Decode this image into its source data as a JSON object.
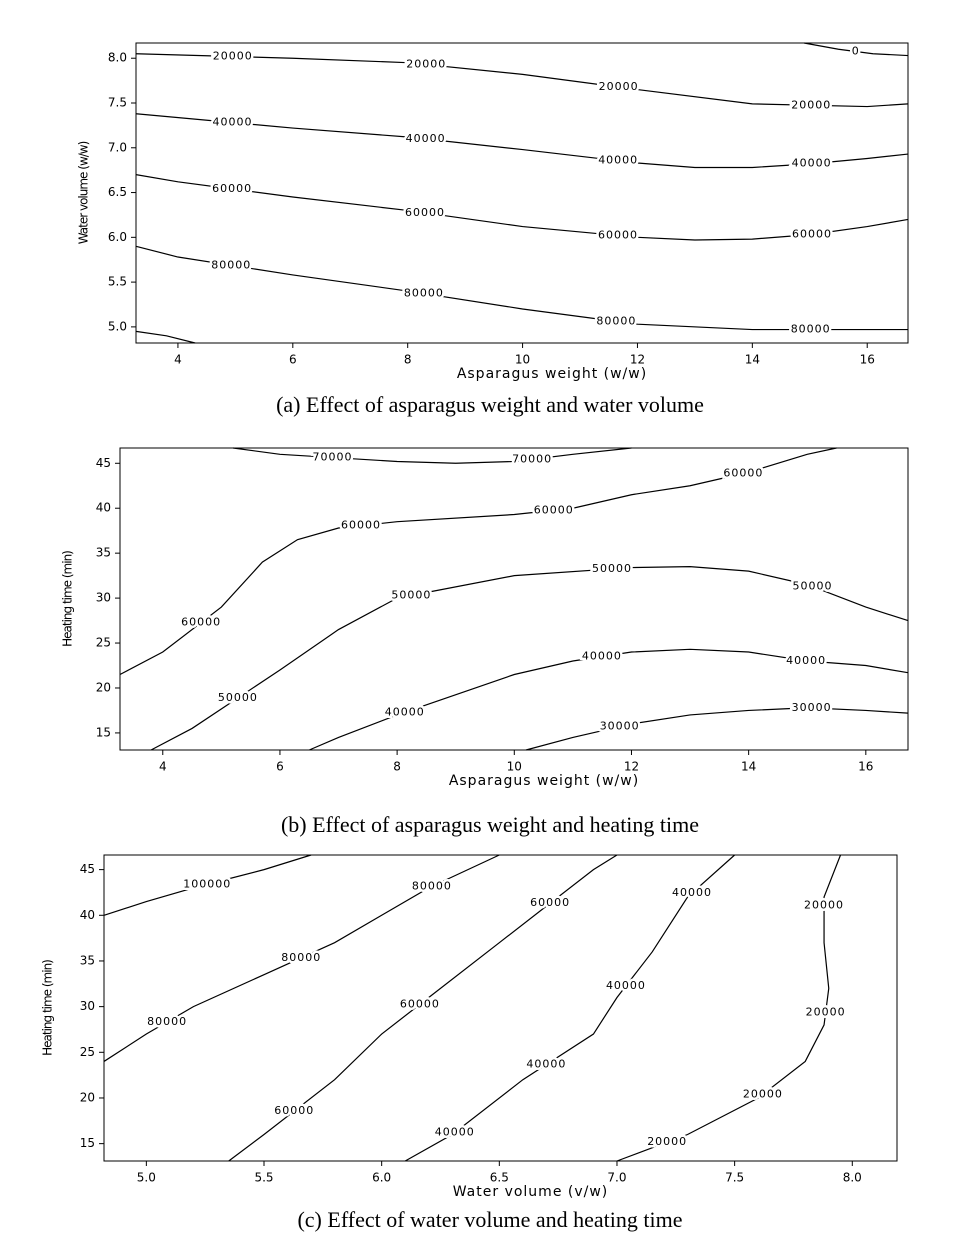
{
  "chart_data": [
    {
      "type": "contour",
      "caption": "(a)  Effect  of  asparagus  weight  and  water  volume",
      "xlabel": "Asparagus weight (w/w)",
      "ylabel": "Water volume (w/w)",
      "xlim": [
        3.27,
        16.71
      ],
      "ylim": [
        4.82,
        8.17
      ],
      "xticks": [
        4,
        6,
        8,
        10,
        12,
        14,
        16
      ],
      "yticks": [
        {
          "value": 5,
          "label": "5.0"
        },
        {
          "value": 5.5,
          "label": "5.5"
        },
        {
          "value": 6,
          "label": "6.0"
        },
        {
          "value": 6.5,
          "label": "6.5"
        },
        {
          "value": 7,
          "label": "7.0"
        },
        {
          "value": 7.5,
          "label": "7.5"
        },
        {
          "value": 8,
          "label": "8.0"
        }
      ],
      "contours": [
        {
          "x": [
            14.9,
            15.5,
            16.1,
            16.71
          ],
          "y": [
            8.17,
            8.1,
            8.05,
            8.03
          ],
          "labels": [
            0
          ]
        },
        {
          "x": [
            3.27,
            6,
            8,
            10,
            12,
            14,
            16,
            16.71
          ],
          "y": [
            8.05,
            8.0,
            7.95,
            7.82,
            7.65,
            7.49,
            7.46,
            7.49
          ],
          "labels": [
            20000,
            20000,
            20000,
            20000
          ]
        },
        {
          "x": [
            3.27,
            6,
            8,
            10,
            12,
            13,
            14,
            15,
            16,
            16.71
          ],
          "y": [
            7.38,
            7.22,
            7.12,
            6.98,
            6.83,
            6.78,
            6.78,
            6.82,
            6.88,
            6.93
          ],
          "labels": [
            40000,
            40000,
            40000,
            40000
          ]
        },
        {
          "x": [
            3.27,
            4,
            6,
            8,
            10,
            12,
            13,
            14,
            15,
            16,
            16.71
          ],
          "y": [
            6.7,
            6.62,
            6.45,
            6.3,
            6.12,
            6.0,
            5.97,
            5.98,
            6.03,
            6.12,
            6.2
          ],
          "labels": [
            60000,
            60000,
            60000,
            60000
          ]
        },
        {
          "x": [
            3.27,
            4,
            6,
            8,
            10,
            12,
            14,
            16,
            16.71
          ],
          "y": [
            5.9,
            5.78,
            5.58,
            5.4,
            5.2,
            5.03,
            4.97,
            4.97,
            4.97
          ],
          "labels": [
            80000,
            80000,
            80000,
            80000
          ]
        },
        {
          "x": [
            3.27,
            3.8,
            4.3
          ],
          "y": [
            4.95,
            4.9,
            4.82
          ],
          "labels": []
        }
      ]
    },
    {
      "type": "contour",
      "caption": "(b)  Effect  of  asparagus  weight  and  heating  time",
      "xlabel": "Asparagus weight (w/w)",
      "ylabel": "Heating time (min)",
      "xlim": [
        3.27,
        16.72
      ],
      "ylim": [
        13.1,
        46.7
      ],
      "xticks": [
        4,
        6,
        8,
        10,
        12,
        14,
        16
      ],
      "yticks": [
        15,
        20,
        25,
        30,
        35,
        40,
        45
      ],
      "contours": [
        {
          "x": [
            5.2,
            6,
            8,
            9,
            10,
            11,
            12
          ],
          "y": [
            46.7,
            46,
            45.2,
            45,
            45.2,
            46,
            46.7
          ],
          "labels": [
            70000,
            70000
          ]
        },
        {
          "x": [
            3.27,
            4,
            5,
            5.7,
            6.3,
            7,
            8,
            10,
            11,
            12,
            13,
            14,
            15,
            15.5
          ],
          "y": [
            21.5,
            24,
            29,
            34,
            36.5,
            37.8,
            38.5,
            39.3,
            40,
            41.5,
            42.5,
            44,
            46,
            46.7
          ],
          "labels": [
            60000,
            60000,
            60000,
            60000
          ]
        },
        {
          "x": [
            3.8,
            4.5,
            6,
            7,
            8,
            10,
            12,
            13,
            14,
            15,
            16,
            16.72
          ],
          "y": [
            13.1,
            15.5,
            22,
            26.5,
            30,
            32.5,
            33.4,
            33.5,
            33,
            31.5,
            29,
            27.5
          ],
          "labels": [
            50000,
            50000,
            50000,
            50000
          ]
        },
        {
          "x": [
            6.5,
            7,
            8,
            10,
            11,
            12,
            13,
            14,
            15,
            16,
            16.72
          ],
          "y": [
            13.1,
            14.5,
            17,
            21.5,
            23,
            24,
            24.3,
            24,
            23,
            22.5,
            21.7
          ],
          "labels": [
            40000,
            40000,
            40000
          ]
        },
        {
          "x": [
            10.2,
            11,
            12,
            13,
            14,
            15,
            16,
            16.72
          ],
          "y": [
            13.1,
            14.5,
            16,
            17,
            17.5,
            17.8,
            17.5,
            17.2
          ],
          "labels": [
            30000,
            30000
          ]
        }
      ]
    },
    {
      "type": "contour",
      "caption": "(c)  Effect  of  water  volume  and  heating  time",
      "xlabel": "Water volume (v/w)",
      "ylabel": "Heating time (min)",
      "xlim": [
        4.82,
        8.19
      ],
      "ylim": [
        13.1,
        46.6
      ],
      "xticks": [
        {
          "value": 5,
          "label": "5.0"
        },
        {
          "value": 5.5,
          "label": "5.5"
        },
        {
          "value": 6,
          "label": "6.0"
        },
        {
          "value": 6.5,
          "label": "6.5"
        },
        {
          "value": 7,
          "label": "7.0"
        },
        {
          "value": 7.5,
          "label": "7.5"
        },
        {
          "value": 8,
          "label": "8.0"
        }
      ],
      "yticks": [
        15,
        20,
        25,
        30,
        35,
        40,
        45
      ],
      "contours": [
        {
          "x": [
            4.82,
            5,
            5.2,
            5.5,
            5.7
          ],
          "y": [
            40,
            41.5,
            43,
            45,
            46.6
          ],
          "labels": [
            100000
          ]
        },
        {
          "x": [
            4.82,
            5,
            5.2,
            5.5,
            5.8,
            6.0,
            6.2,
            6.5
          ],
          "y": [
            24,
            27,
            30,
            33.5,
            37,
            40,
            43,
            46.6
          ],
          "labels": [
            80000,
            80000,
            80000
          ]
        },
        {
          "x": [
            5.35,
            5.5,
            5.8,
            6.0,
            6.2,
            6.5,
            6.7,
            6.9,
            7.0
          ],
          "y": [
            13.1,
            16,
            22,
            27,
            31,
            37,
            41,
            45,
            46.6
          ],
          "labels": [
            60000,
            60000,
            60000
          ]
        },
        {
          "x": [
            6.1,
            6.3,
            6.6,
            6.9,
            7.0,
            7.15,
            7.3,
            7.5
          ],
          "y": [
            13.1,
            16,
            22,
            27,
            31,
            36,
            42,
            46.6
          ],
          "labels": [
            40000,
            40000,
            40000,
            40000
          ]
        },
        {
          "x": [
            7.0,
            7.3,
            7.6,
            7.8,
            7.88,
            7.9,
            7.88,
            7.88,
            7.95
          ],
          "y": [
            13.1,
            16,
            20,
            24,
            28,
            32,
            37,
            42,
            46.6
          ],
          "labels": [
            20000,
            20000,
            20000,
            20000
          ]
        }
      ]
    }
  ]
}
